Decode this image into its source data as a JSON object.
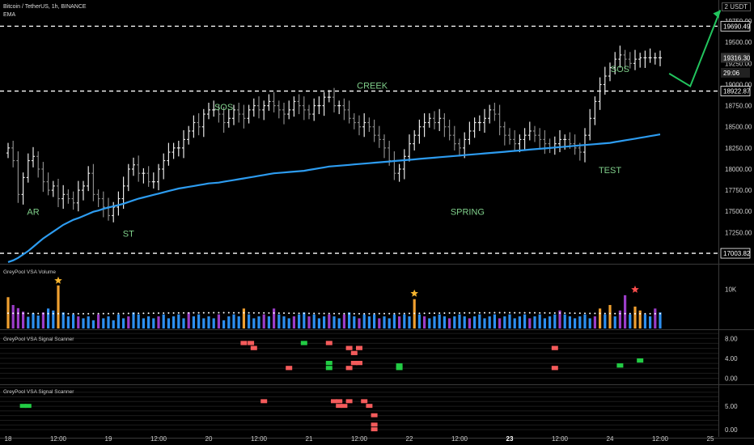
{
  "header": {
    "symbol_line": "Bitcoin / TetherUS, 1h, BINANCE",
    "indicator": "EMA",
    "unit": "USDT"
  },
  "price_axis": {
    "ticks": [
      "19750.00",
      "19500.00",
      "19250.00",
      "19000.00",
      "18750.00",
      "18500.00",
      "18250.00",
      "18000.00",
      "17750.00",
      "17500.00",
      "17250.00"
    ],
    "tick_values": [
      19750,
      19500,
      19250,
      19000,
      18750,
      18500,
      18250,
      18000,
      17750,
      17500,
      17250
    ],
    "ylim": [
      16880,
      20000
    ],
    "top_tick": "2"
  },
  "levels": [
    {
      "value": 19690.49,
      "label": "19690.49"
    },
    {
      "value": 18922.87,
      "label": "18922.87"
    },
    {
      "value": 17003.82,
      "label": "17003.82"
    }
  ],
  "price_tags": [
    {
      "value": 19316.3,
      "label": "19316.30"
    },
    {
      "value": 19235,
      "label": "29:06"
    }
  ],
  "annotations": [
    {
      "text": "AR",
      "t": 0.25,
      "v": 17460
    },
    {
      "text": "ST",
      "t": 1.2,
      "v": 17200
    },
    {
      "text": "SOS",
      "t": 2.15,
      "v": 18700
    },
    {
      "text": "CREEK",
      "t": 3.63,
      "v": 18950
    },
    {
      "text": "SPRING",
      "t": 4.58,
      "v": 17460
    },
    {
      "text": "TEST",
      "t": 6.0,
      "v": 17950
    },
    {
      "text": "SOS",
      "t": 6.1,
      "v": 19150
    }
  ],
  "projection": {
    "points": [
      [
        6.59,
        19130
      ],
      [
        6.8,
        18980
      ],
      [
        7.1,
        19880
      ]
    ],
    "color": "#22c55e"
  },
  "time_axis": {
    "labels": [
      "18",
      "12:00",
      "19",
      "12:00",
      "20",
      "12:00",
      "21",
      "12:00",
      "22",
      "12:00",
      "23",
      "12:00",
      "24",
      "12:00",
      "25"
    ],
    "positions": [
      0,
      0.5,
      1,
      1.5,
      2,
      2.5,
      3,
      3.5,
      4,
      4.5,
      5,
      5.5,
      6,
      6.5,
      7
    ]
  },
  "panels": [
    {
      "label": "GreyPool VSA Volume",
      "ticks": [
        "10K"
      ],
      "tick_values": [
        10000
      ],
      "ylim": [
        0,
        15500
      ]
    },
    {
      "label": "GreyPool VSA Signal Scanner",
      "ticks": [
        "8.00",
        "4.00",
        "0.00"
      ],
      "tick_values": [
        8,
        4,
        0
      ],
      "ylim": [
        -1.2,
        9.5
      ]
    },
    {
      "label": "GreyPool VSA Signal Scanner",
      "ticks": [
        "5.00",
        "0.00"
      ],
      "tick_values": [
        5,
        0
      ],
      "ylim": [
        -1.2,
        9.5
      ]
    }
  ],
  "colors": {
    "background": "#000000",
    "bar": "#d9d9d9",
    "ema": "#2d9cf0",
    "annotation": "#7fcf8a",
    "vol_blue": "#2d8ff0",
    "vol_purple": "#9b3dc8",
    "vol_orange": "#f0a030",
    "star_red": "#ff4d4d",
    "star_orange": "#f5b32e",
    "signal_red": "#f45b5b",
    "signal_green": "#22cc44",
    "dotted_ma": "#ffffff"
  },
  "chart_data": [
    {
      "type": "ohlc",
      "title": "Bitcoin / TetherUS, 1h, BINANCE",
      "x": [
        0,
        0.05,
        0.1,
        0.15,
        0.2,
        0.25,
        0.3,
        0.35,
        0.4,
        0.45,
        0.5,
        0.55,
        0.6,
        0.65,
        0.7,
        0.75,
        0.8,
        0.85,
        0.9,
        0.95,
        1,
        1.05,
        1.1,
        1.15,
        1.2,
        1.25,
        1.3,
        1.35,
        1.4,
        1.45,
        1.5,
        1.55,
        1.6,
        1.65,
        1.7,
        1.75,
        1.8,
        1.85,
        1.9,
        1.95,
        2,
        2.05,
        2.1,
        2.15,
        2.2,
        2.25,
        2.3,
        2.35,
        2.4,
        2.45,
        2.5,
        2.55,
        2.6,
        2.65,
        2.7,
        2.75,
        2.8,
        2.85,
        2.9,
        2.95,
        3,
        3.05,
        3.1,
        3.15,
        3.2,
        3.25,
        3.3,
        3.35,
        3.4,
        3.45,
        3.5,
        3.55,
        3.6,
        3.65,
        3.7,
        3.75,
        3.8,
        3.85,
        3.9,
        3.95,
        4,
        4.05,
        4.1,
        4.15,
        4.2,
        4.25,
        4.3,
        4.35,
        4.4,
        4.45,
        4.5,
        4.55,
        4.6,
        4.65,
        4.7,
        4.75,
        4.8,
        4.85,
        4.9,
        4.95,
        5,
        5.05,
        5.1,
        5.15,
        5.2,
        5.25,
        5.3,
        5.35,
        5.4,
        5.45,
        5.5,
        5.55,
        5.6,
        5.65,
        5.7,
        5.75,
        5.8,
        5.85,
        5.9,
        5.95,
        6,
        6.05,
        6.1,
        6.15,
        6.2,
        6.25,
        6.3,
        6.35,
        6.4,
        6.45,
        6.5
      ],
      "close": [
        18250,
        18100,
        17700,
        17900,
        18100,
        18150,
        18000,
        17850,
        17750,
        17800,
        17650,
        17700,
        17650,
        17600,
        17750,
        17800,
        17950,
        17700,
        17650,
        17550,
        17450,
        17550,
        17650,
        17800,
        18000,
        18050,
        17950,
        17950,
        17850,
        17850,
        18000,
        18100,
        18200,
        18250,
        18250,
        18350,
        18450,
        18550,
        18500,
        18650,
        18700,
        18700,
        18650,
        18550,
        18600,
        18700,
        18650,
        18600,
        18700,
        18750,
        18700,
        18750,
        18800,
        18750,
        18700,
        18650,
        18700,
        18800,
        18750,
        18700,
        18650,
        18750,
        18750,
        18850,
        18850,
        18750,
        18750,
        18700,
        18600,
        18550,
        18500,
        18550,
        18500,
        18400,
        18350,
        18250,
        18100,
        17950,
        18000,
        18150,
        18300,
        18400,
        18500,
        18550,
        18600,
        18550,
        18600,
        18500,
        18400,
        18300,
        18250,
        18350,
        18450,
        18550,
        18550,
        18600,
        18700,
        18650,
        18500,
        18400,
        18350,
        18300,
        18350,
        18400,
        18450,
        18400,
        18350,
        18300,
        18250,
        18300,
        18350,
        18350,
        18300,
        18250,
        18200,
        18400,
        18600,
        18800,
        19000,
        19100,
        19200,
        19300,
        19350,
        19300,
        19250,
        19300,
        19316.3,
        19316.3,
        19316.3,
        19316.3,
        19316.3
      ],
      "ema": [
        16900,
        16920,
        16950,
        16990,
        17030,
        17080,
        17130,
        17180,
        17220,
        17260,
        17300,
        17340,
        17370,
        17400,
        17420,
        17445,
        17470,
        17495,
        17510,
        17530,
        17545,
        17560,
        17575,
        17590,
        17610,
        17630,
        17650,
        17665,
        17680,
        17695,
        17710,
        17725,
        17740,
        17755,
        17770,
        17780,
        17790,
        17800,
        17810,
        17820,
        17830,
        17835,
        17840,
        17850,
        17860,
        17870,
        17880,
        17890,
        17900,
        17910,
        17920,
        17930,
        17940,
        17950,
        17955,
        17960,
        17965,
        17970,
        17975,
        17980,
        17990,
        18000,
        18010,
        18020,
        18030,
        18035,
        18040,
        18045,
        18050,
        18055,
        18060,
        18065,
        18070,
        18075,
        18080,
        18085,
        18090,
        18095,
        18100,
        18105,
        18110,
        18115,
        18120,
        18125,
        18130,
        18135,
        18140,
        18145,
        18150,
        18155,
        18160,
        18165,
        18170,
        18175,
        18180,
        18185,
        18190,
        18195,
        18200,
        18205,
        18210,
        18215,
        18220,
        18225,
        18230,
        18235,
        18240,
        18245,
        18250,
        18255,
        18260,
        18265,
        18270,
        18275,
        18280,
        18285,
        18290,
        18295,
        18300,
        18305,
        18310,
        18320,
        18330,
        18340,
        18350,
        18360,
        18370,
        18380,
        18390,
        18400,
        18410
      ]
    },
    {
      "type": "bar",
      "title": "GreyPool VSA Volume",
      "x": [
        0,
        0.05,
        0.1,
        0.15,
        0.2,
        0.25,
        0.3,
        0.35,
        0.4,
        0.45,
        0.5,
        0.55,
        0.6,
        0.65,
        0.7,
        0.75,
        0.8,
        0.85,
        0.9,
        0.95,
        1,
        1.05,
        1.1,
        1.15,
        1.2,
        1.25,
        1.3,
        1.35,
        1.4,
        1.45,
        1.5,
        1.55,
        1.6,
        1.65,
        1.7,
        1.75,
        1.8,
        1.85,
        1.9,
        1.95,
        2,
        2.05,
        2.1,
        2.15,
        2.2,
        2.25,
        2.3,
        2.35,
        2.4,
        2.45,
        2.5,
        2.55,
        2.6,
        2.65,
        2.7,
        2.75,
        2.8,
        2.85,
        2.9,
        2.95,
        3,
        3.05,
        3.1,
        3.15,
        3.2,
        3.25,
        3.3,
        3.35,
        3.4,
        3.45,
        3.5,
        3.55,
        3.6,
        3.65,
        3.7,
        3.75,
        3.8,
        3.85,
        3.9,
        3.95,
        4,
        4.05,
        4.1,
        4.15,
        4.2,
        4.25,
        4.3,
        4.35,
        4.4,
        4.45,
        4.5,
        4.55,
        4.6,
        4.65,
        4.7,
        4.75,
        4.8,
        4.85,
        4.9,
        4.95,
        5,
        5.05,
        5.1,
        5.15,
        5.2,
        5.25,
        5.3,
        5.35,
        5.4,
        5.45,
        5.5,
        5.55,
        5.6,
        5.65,
        5.7,
        5.75,
        5.8,
        5.85,
        5.9,
        5.95,
        6,
        6.05,
        6.1,
        6.15,
        6.2,
        6.25,
        6.3,
        6.35,
        6.4,
        6.45,
        6.5
      ],
      "values": [
        8000,
        6000,
        5200,
        4300,
        3000,
        3900,
        3300,
        4100,
        5100,
        4600,
        11000,
        4100,
        3100,
        3600,
        3100,
        2600,
        3100,
        2100,
        3600,
        2600,
        3100,
        2100,
        3600,
        2600,
        3100,
        4100,
        3600,
        2600,
        3100,
        2600,
        3100,
        3600,
        2600,
        3100,
        3600,
        2600,
        4100,
        3100,
        3600,
        2600,
        3100,
        2600,
        3600,
        2100,
        3100,
        3600,
        3100,
        5100,
        3600,
        2600,
        3100,
        3600,
        3100,
        5100,
        3600,
        3100,
        2600,
        3100,
        3600,
        4100,
        3100,
        3600,
        2600,
        3100,
        3600,
        3100,
        2600,
        3600,
        4100,
        3100,
        2600,
        3600,
        3100,
        3600,
        2600,
        3100,
        2600,
        3600,
        3100,
        3600,
        3100,
        7500,
        3600,
        3100,
        2600,
        3100,
        3600,
        3100,
        2600,
        3100,
        3600,
        3100,
        2600,
        3100,
        3600,
        2600,
        3100,
        3600,
        2600,
        3100,
        3600,
        2600,
        3100,
        3600,
        2600,
        3100,
        3600,
        2600,
        3100,
        3600,
        4600,
        3600,
        3100,
        2600,
        3100,
        3600,
        2600,
        3100,
        5100,
        3600,
        6000,
        3100,
        4600,
        8500,
        3600,
        5600,
        4600,
        3600,
        3100,
        5100,
        4100
      ],
      "colors_by_bar": [
        "o",
        "p",
        "p",
        "p",
        "b",
        "b",
        "b",
        "p",
        "b",
        "b",
        "o",
        "b",
        "b",
        "b",
        "p",
        "b",
        "b",
        "b",
        "p",
        "b",
        "b",
        "b",
        "b",
        "b",
        "p",
        "b",
        "b",
        "b",
        "b",
        "b",
        "p",
        "b",
        "b",
        "b",
        "b",
        "b",
        "p",
        "b",
        "b",
        "b",
        "b",
        "b",
        "p",
        "b",
        "b",
        "b",
        "b",
        "o",
        "b",
        "b",
        "b",
        "p",
        "b",
        "p",
        "b",
        "b",
        "b",
        "p",
        "b",
        "b",
        "p",
        "b",
        "b",
        "b",
        "p",
        "b",
        "b",
        "p",
        "b",
        "b",
        "p",
        "b",
        "b",
        "b",
        "p",
        "b",
        "b",
        "b",
        "p",
        "b",
        "b",
        "o",
        "b",
        "p",
        "b",
        "b",
        "b",
        "b",
        "p",
        "b",
        "b",
        "b",
        "p",
        "b",
        "b",
        "b",
        "b",
        "b",
        "p",
        "b",
        "b",
        "b",
        "b",
        "b",
        "p",
        "b",
        "b",
        "b",
        "b",
        "b",
        "p",
        "b",
        "b",
        "b",
        "b",
        "b",
        "b",
        "p",
        "o",
        "b",
        "o",
        "b",
        "p",
        "p",
        "b",
        "o",
        "o",
        "b",
        "b",
        "p",
        "b"
      ]
    },
    {
      "type": "heatmap",
      "title": "GreyPool VSA Signal Scanner",
      "cells": [
        {
          "t": 2.35,
          "v": 7.0,
          "c": "r"
        },
        {
          "t": 2.42,
          "v": 7.0,
          "c": "r"
        },
        {
          "t": 2.45,
          "v": 6.0,
          "c": "r"
        },
        {
          "t": 2.8,
          "v": 2.0,
          "c": "r"
        },
        {
          "t": 2.95,
          "v": 7.0,
          "c": "g"
        },
        {
          "t": 3.2,
          "v": 7.0,
          "c": "r"
        },
        {
          "t": 3.2,
          "v": 3.0,
          "c": "g"
        },
        {
          "t": 3.2,
          "v": 2.0,
          "c": "g"
        },
        {
          "t": 3.4,
          "v": 6.0,
          "c": "r"
        },
        {
          "t": 3.45,
          "v": 5.0,
          "c": "r"
        },
        {
          "t": 3.5,
          "v": 6.0,
          "c": "r"
        },
        {
          "t": 3.45,
          "v": 3.0,
          "c": "r"
        },
        {
          "t": 3.5,
          "v": 3.0,
          "c": "r"
        },
        {
          "t": 3.4,
          "v": 2.0,
          "c": "r"
        },
        {
          "t": 3.9,
          "v": 2.0,
          "c": "g"
        },
        {
          "t": 3.9,
          "v": 2.5,
          "c": "g"
        },
        {
          "t": 5.45,
          "v": 6.0,
          "c": "r"
        },
        {
          "t": 5.45,
          "v": 2.0,
          "c": "r"
        },
        {
          "t": 6.1,
          "v": 2.5,
          "c": "g"
        },
        {
          "t": 6.3,
          "v": 3.5,
          "c": "g"
        }
      ]
    },
    {
      "type": "heatmap",
      "title": "GreyPool VSA Signal Scanner",
      "cells": [
        {
          "t": 0.15,
          "v": 5.0,
          "c": "g"
        },
        {
          "t": 0.2,
          "v": 5.0,
          "c": "g"
        },
        {
          "t": 2.55,
          "v": 6.0,
          "c": "r"
        },
        {
          "t": 3.25,
          "v": 6.0,
          "c": "r"
        },
        {
          "t": 3.3,
          "v": 6.0,
          "c": "r"
        },
        {
          "t": 3.4,
          "v": 6.0,
          "c": "r"
        },
        {
          "t": 3.3,
          "v": 5.0,
          "c": "r"
        },
        {
          "t": 3.35,
          "v": 5.0,
          "c": "r"
        },
        {
          "t": 3.55,
          "v": 6.0,
          "c": "r"
        },
        {
          "t": 3.6,
          "v": 5.0,
          "c": "r"
        },
        {
          "t": 3.65,
          "v": 3.0,
          "c": "r"
        },
        {
          "t": 3.65,
          "v": 1.0,
          "c": "r"
        },
        {
          "t": 3.65,
          "v": 0.0,
          "c": "r"
        }
      ]
    }
  ]
}
